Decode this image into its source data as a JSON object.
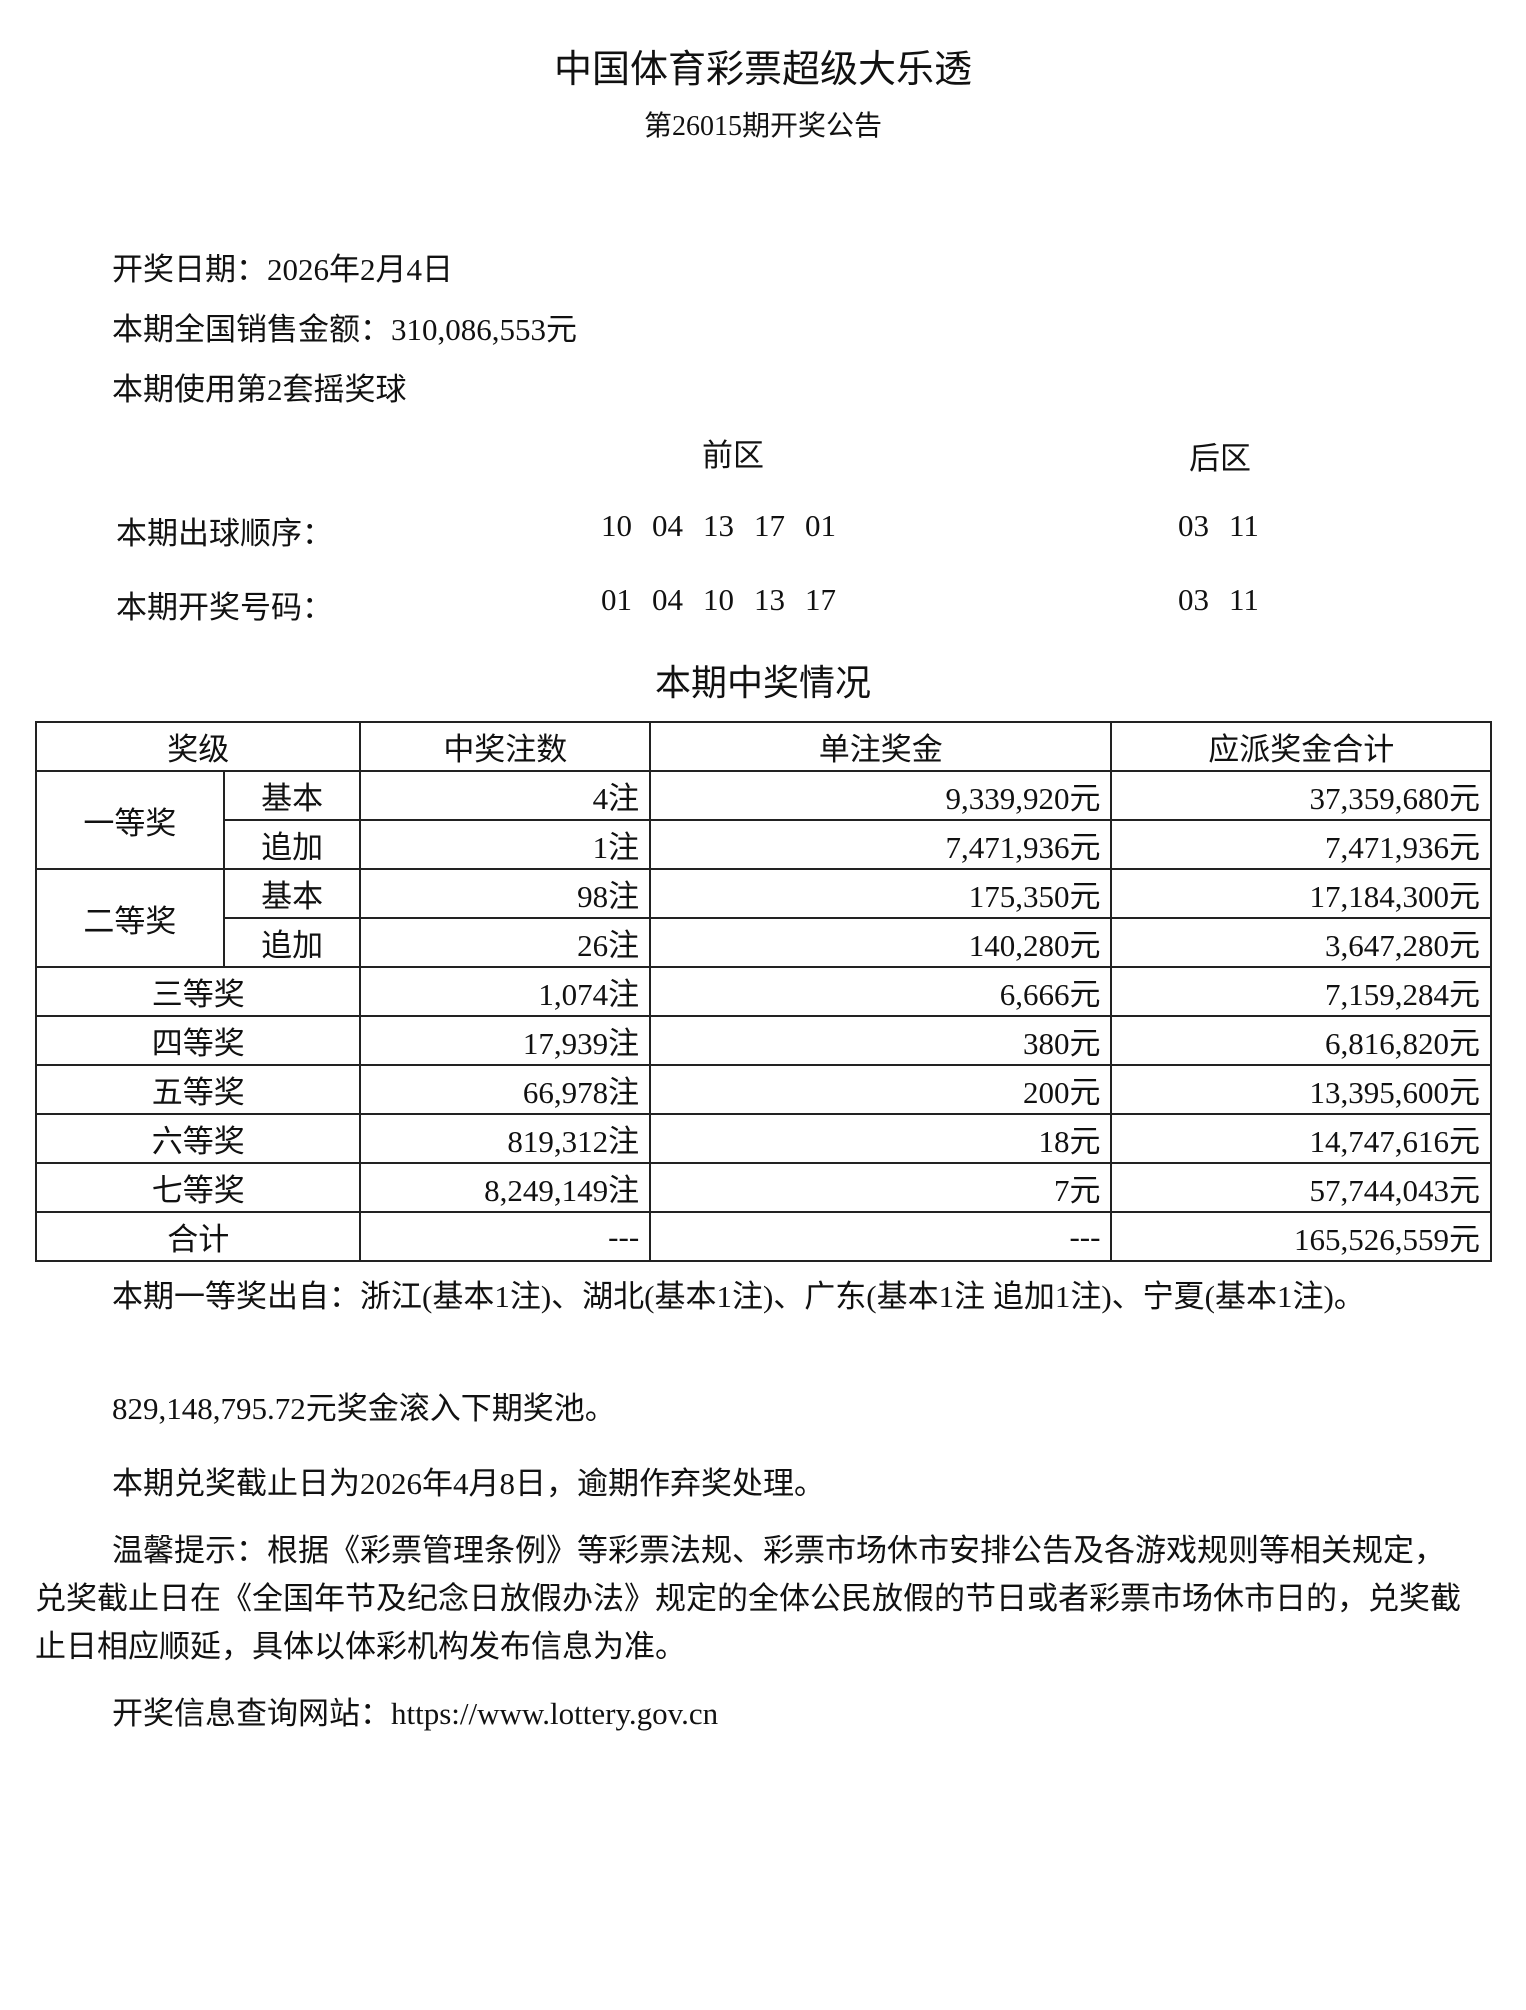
{
  "header": {
    "title": "中国体育彩票超级大乐透",
    "subtitle": "第26015期开奖公告"
  },
  "info": {
    "draw_date": "开奖日期：2026年2月4日",
    "sales": "本期全国销售金额：310,086,553元",
    "ball_set": "本期使用第2套摇奖球"
  },
  "numbers": {
    "front_label": "前区",
    "back_label": "后区",
    "order_label": "本期出球顺序：",
    "order_front": [
      "10",
      "04",
      "13",
      "17",
      "01"
    ],
    "order_back": [
      "03",
      "11"
    ],
    "result_label": "本期开奖号码：",
    "result_front": [
      "01",
      "04",
      "10",
      "13",
      "17"
    ],
    "result_back": [
      "03",
      "11"
    ]
  },
  "prize_section_title": "本期中奖情况",
  "table": {
    "headers": [
      "奖级",
      "中奖注数",
      "单注奖金",
      "应派奖金合计"
    ],
    "first": {
      "label": "一等奖",
      "rows": [
        {
          "type": "基本",
          "count": "4注",
          "unit": "9,339,920元",
          "total": "37,359,680元"
        },
        {
          "type": "追加",
          "count": "1注",
          "unit": "7,471,936元",
          "total": "7,471,936元"
        }
      ]
    },
    "second": {
      "label": "二等奖",
      "rows": [
        {
          "type": "基本",
          "count": "98注",
          "unit": "175,350元",
          "total": "17,184,300元"
        },
        {
          "type": "追加",
          "count": "26注",
          "unit": "140,280元",
          "total": "3,647,280元"
        }
      ]
    },
    "rows": [
      {
        "level": "三等奖",
        "count": "1,074注",
        "unit": "6,666元",
        "total": "7,159,284元"
      },
      {
        "level": "四等奖",
        "count": "17,939注",
        "unit": "380元",
        "total": "6,816,820元"
      },
      {
        "level": "五等奖",
        "count": "66,978注",
        "unit": "200元",
        "total": "13,395,600元"
      },
      {
        "level": "六等奖",
        "count": "819,312注",
        "unit": "18元",
        "total": "14,747,616元"
      },
      {
        "level": "七等奖",
        "count": "8,249,149注",
        "unit": "7元",
        "total": "57,744,043元"
      },
      {
        "level": "合计",
        "count": "---",
        "unit": "---",
        "total": "165,526,559元"
      }
    ]
  },
  "notes": {
    "first_prize_origin": "本期一等奖出自：浙江(基本1注)、湖北(基本1注)、广东(基本1注 追加1注)、宁夏(基本1注)。",
    "rollover": "829,148,795.72元奖金滚入下期奖池。",
    "deadline": "本期兑奖截止日为2026年4月8日，逾期作弃奖处理。",
    "reminder": "温馨提示：根据《彩票管理条例》等彩票法规、彩票市场休市安排公告及各游戏规则等相关规定，兑奖截止日在《全国年节及纪念日放假办法》规定的全体公民放假的节日或者彩票市场休市日的，兑奖截止日相应顺延，具体以体彩机构发布信息为准。",
    "website": "开奖信息查询网站：https://www.lottery.gov.cn"
  }
}
